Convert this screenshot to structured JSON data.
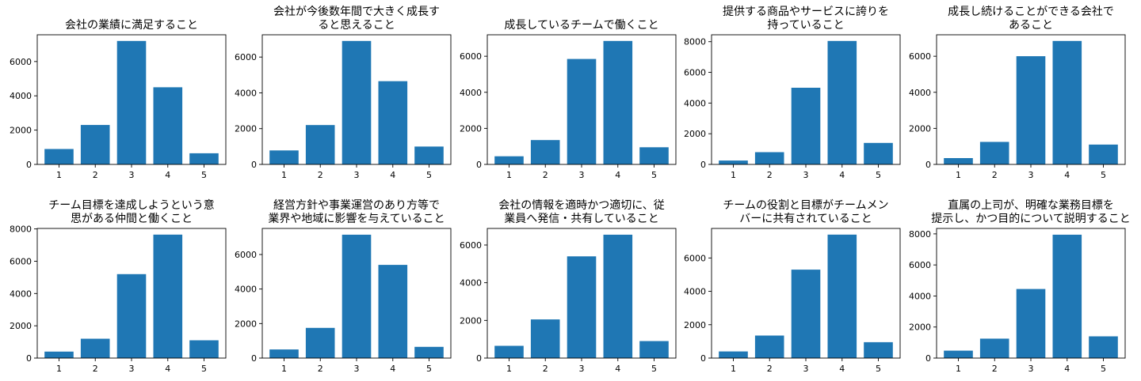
{
  "chart_data": [
    {
      "type": "bar",
      "title": [
        "会社の業績に満足すること"
      ],
      "categories": [
        "1",
        "2",
        "3",
        "4",
        "5"
      ],
      "values": [
        900,
        2300,
        7200,
        4500,
        650
      ],
      "ylim": [
        0,
        7560
      ],
      "yticks": [
        0,
        2000,
        4000,
        6000
      ],
      "xlabel": "",
      "ylabel": "",
      "color": "#1f77b4",
      "grid": false
    },
    {
      "type": "bar",
      "title": [
        "会社が今後数年間で大きく成長す",
        "ると思えること"
      ],
      "categories": [
        "1",
        "2",
        "3",
        "4",
        "5"
      ],
      "values": [
        780,
        2200,
        6900,
        4650,
        1000
      ],
      "ylim": [
        0,
        7245
      ],
      "yticks": [
        0,
        2000,
        4000,
        6000
      ],
      "xlabel": "",
      "ylabel": "",
      "color": "#1f77b4",
      "grid": false
    },
    {
      "type": "bar",
      "title": [
        "成長しているチームで働くこと"
      ],
      "categories": [
        "1",
        "2",
        "3",
        "4",
        "5"
      ],
      "values": [
        450,
        1350,
        5850,
        6850,
        950
      ],
      "ylim": [
        0,
        7190
      ],
      "yticks": [
        0,
        2000,
        4000,
        6000
      ],
      "xlabel": "",
      "ylabel": "",
      "color": "#1f77b4",
      "grid": false
    },
    {
      "type": "bar",
      "title": [
        "提供する商品やサービスに誇りを",
        "持っていること"
      ],
      "categories": [
        "1",
        "2",
        "3",
        "4",
        "5"
      ],
      "values": [
        250,
        800,
        5000,
        8050,
        1400
      ],
      "ylim": [
        0,
        8450
      ],
      "yticks": [
        0,
        2000,
        4000,
        6000,
        8000
      ],
      "xlabel": "",
      "ylabel": "",
      "color": "#1f77b4",
      "grid": false
    },
    {
      "type": "bar",
      "title": [
        "成長し続けることができる会社で",
        "あること"
      ],
      "categories": [
        "1",
        "2",
        "3",
        "4",
        "5"
      ],
      "values": [
        350,
        1250,
        6000,
        6850,
        1100
      ],
      "ylim": [
        0,
        7190
      ],
      "yticks": [
        0,
        2000,
        4000,
        6000
      ],
      "xlabel": "",
      "ylabel": "",
      "color": "#1f77b4",
      "grid": false
    },
    {
      "type": "bar",
      "title": [
        "チーム目標を達成しようという意",
        "思がある仲間と働くこと"
      ],
      "categories": [
        "1",
        "2",
        "3",
        "4",
        "5"
      ],
      "values": [
        400,
        1200,
        5200,
        7650,
        1100
      ],
      "ylim": [
        0,
        8030
      ],
      "yticks": [
        0,
        2000,
        4000,
        6000,
        8000
      ],
      "xlabel": "",
      "ylabel": "",
      "color": "#1f77b4",
      "grid": false
    },
    {
      "type": "bar",
      "title": [
        "経営方針や事業運営のあり方等で",
        "業界や地域に影響を与えていること"
      ],
      "categories": [
        "1",
        "2",
        "3",
        "4",
        "5"
      ],
      "values": [
        500,
        1750,
        7150,
        5400,
        650
      ],
      "ylim": [
        0,
        7510
      ],
      "yticks": [
        0,
        2000,
        4000,
        6000
      ],
      "xlabel": "",
      "ylabel": "",
      "color": "#1f77b4",
      "grid": false
    },
    {
      "type": "bar",
      "title": [
        "会社の情報を適時かつ適切に、従",
        "業員へ発信・共有していること"
      ],
      "categories": [
        "1",
        "2",
        "3",
        "4",
        "5"
      ],
      "values": [
        650,
        2050,
        5400,
        6550,
        900
      ],
      "ylim": [
        0,
        6880
      ],
      "yticks": [
        0,
        2000,
        4000,
        6000
      ],
      "xlabel": "",
      "ylabel": "",
      "color": "#1f77b4",
      "grid": false
    },
    {
      "type": "bar",
      "title": [
        "チームの役割と目標がチームメン",
        "バーに共有されていること"
      ],
      "categories": [
        "1",
        "2",
        "3",
        "4",
        "5"
      ],
      "values": [
        400,
        1350,
        5300,
        7400,
        950
      ],
      "ylim": [
        0,
        7770
      ],
      "yticks": [
        0,
        2000,
        4000,
        6000
      ],
      "xlabel": "",
      "ylabel": "",
      "color": "#1f77b4",
      "grid": false
    },
    {
      "type": "bar",
      "title": [
        "直属の上司が、明確な業務目標を",
        "提示し、かつ目的について説明すること"
      ],
      "categories": [
        "1",
        "2",
        "3",
        "4",
        "5"
      ],
      "values": [
        480,
        1250,
        4450,
        7950,
        1400
      ],
      "ylim": [
        0,
        8350
      ],
      "yticks": [
        0,
        2000,
        4000,
        6000,
        8000
      ],
      "xlabel": "",
      "ylabel": "",
      "color": "#1f77b4",
      "grid": false
    }
  ]
}
